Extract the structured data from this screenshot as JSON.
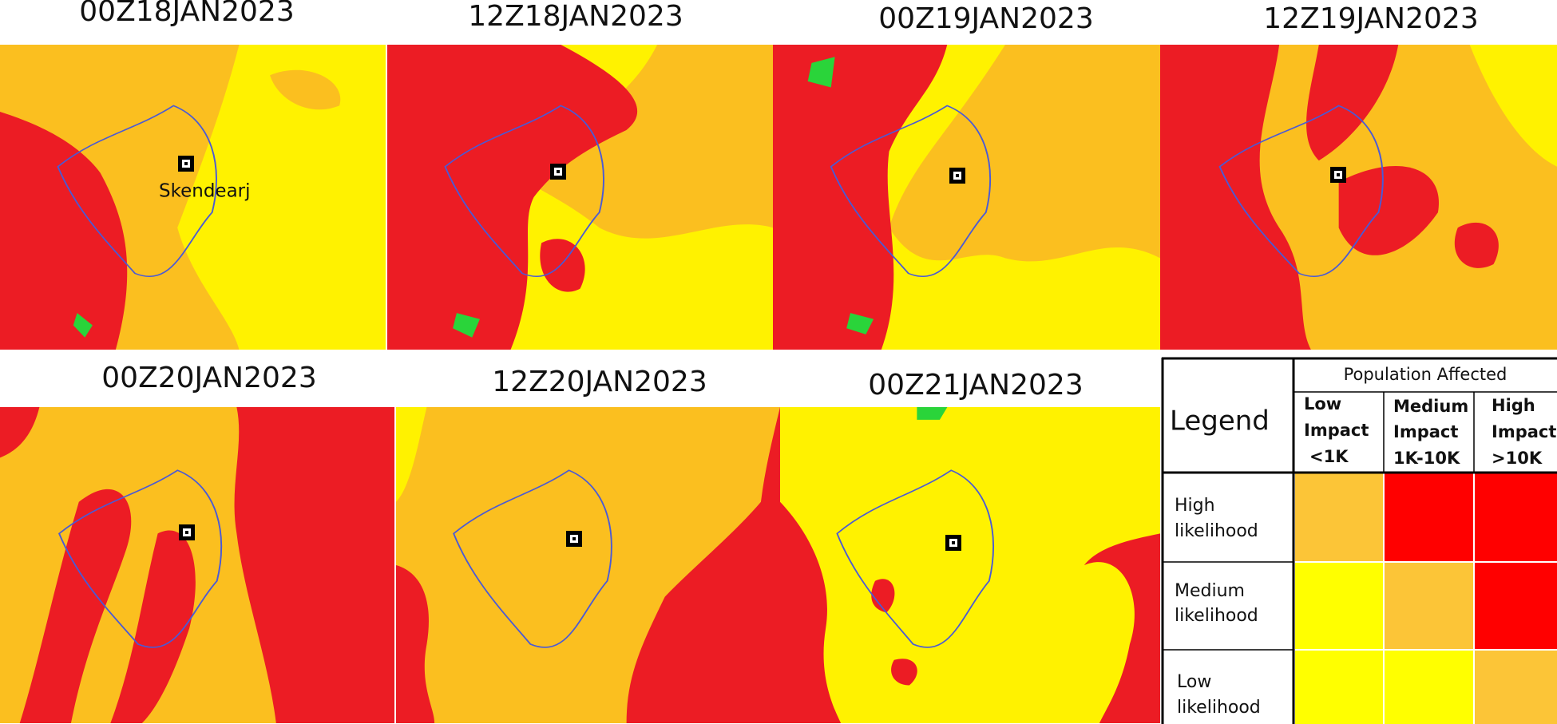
{
  "panels": [
    {
      "title": "00Z18JAN2023"
    },
    {
      "title": "12Z18JAN2023"
    },
    {
      "title": "00Z19JAN2023"
    },
    {
      "title": "12Z19JAN2023"
    },
    {
      "title": "00Z20JAN2023"
    },
    {
      "title": "12Z20JAN2023"
    },
    {
      "title": "00Z21JAN2023"
    }
  ],
  "place_label": "Skendearj",
  "legend": {
    "title": "Legend",
    "header": "Population Affected",
    "columns": [
      {
        "level": "Low",
        "word": "Impact",
        "range": "<1K"
      },
      {
        "level": "Medium",
        "word": "Impact",
        "range": "1K-10K"
      },
      {
        "level": "High",
        "word": "Impact",
        "range": ">10K"
      }
    ],
    "rows": [
      {
        "level": "High",
        "word": "likelihood"
      },
      {
        "level": "Medium",
        "word": "likelihood"
      },
      {
        "level": "Low",
        "word": "likelihood"
      }
    ]
  }
}
